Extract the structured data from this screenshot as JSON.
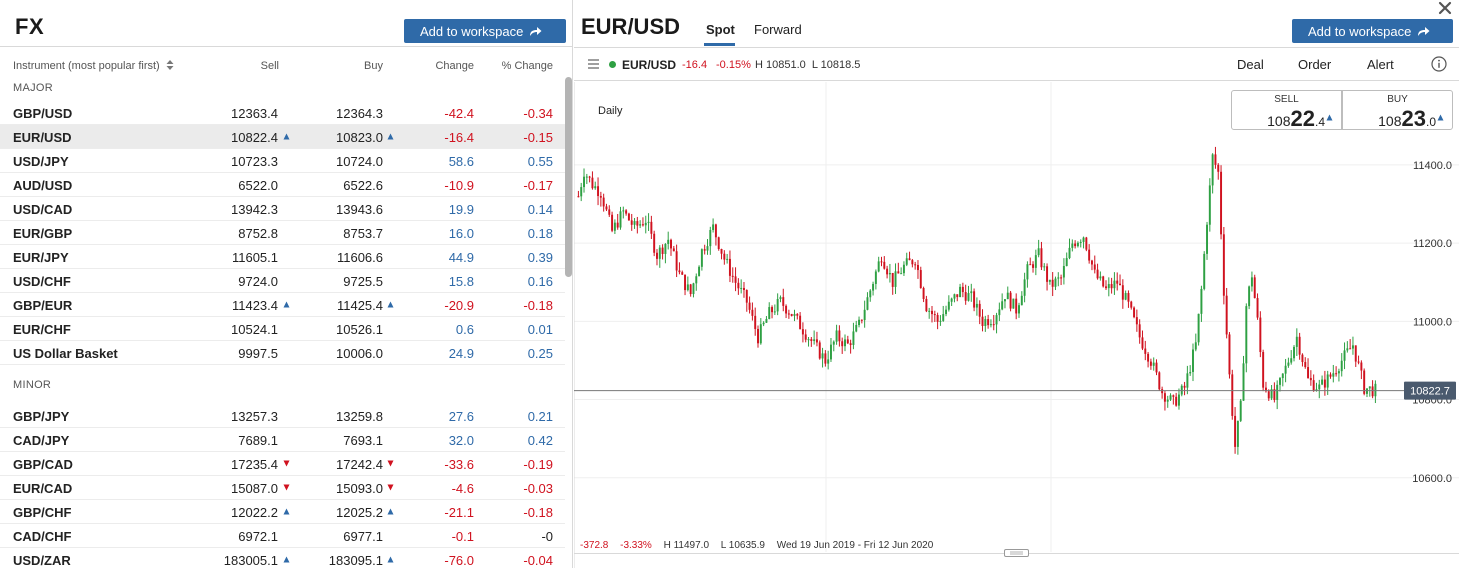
{
  "left_panel": {
    "title": "FX",
    "add_to_workspace": "Add to workspace",
    "columns": {
      "instrument": "Instrument (most popular first)",
      "sell": "Sell",
      "buy": "Buy",
      "change": "Change",
      "pct_change": "% Change"
    },
    "groups": [
      {
        "label": "MAJOR",
        "rows": [
          {
            "instrument": "GBP/USD",
            "sell": "12363.4",
            "buy": "12364.3",
            "change": "-42.4",
            "pct": "-0.34",
            "dir": "neg",
            "tick": ""
          },
          {
            "instrument": "EUR/USD",
            "sell": "10822.4",
            "buy": "10823.0",
            "change": "-16.4",
            "pct": "-0.15",
            "dir": "neg",
            "tick": "up",
            "selected": true
          },
          {
            "instrument": "USD/JPY",
            "sell": "10723.3",
            "buy": "10724.0",
            "change": "58.6",
            "pct": "0.55",
            "dir": "pos",
            "tick": ""
          },
          {
            "instrument": "AUD/USD",
            "sell": "6522.0",
            "buy": "6522.6",
            "change": "-10.9",
            "pct": "-0.17",
            "dir": "neg",
            "tick": ""
          },
          {
            "instrument": "USD/CAD",
            "sell": "13942.3",
            "buy": "13943.6",
            "change": "19.9",
            "pct": "0.14",
            "dir": "pos",
            "tick": ""
          },
          {
            "instrument": "EUR/GBP",
            "sell": "8752.8",
            "buy": "8753.7",
            "change": "16.0",
            "pct": "0.18",
            "dir": "pos",
            "tick": ""
          },
          {
            "instrument": "EUR/JPY",
            "sell": "11605.1",
            "buy": "11606.6",
            "change": "44.9",
            "pct": "0.39",
            "dir": "pos",
            "tick": ""
          },
          {
            "instrument": "USD/CHF",
            "sell": "9724.0",
            "buy": "9725.5",
            "change": "15.8",
            "pct": "0.16",
            "dir": "pos",
            "tick": ""
          },
          {
            "instrument": "GBP/EUR",
            "sell": "11423.4",
            "buy": "11425.4",
            "change": "-20.9",
            "pct": "-0.18",
            "dir": "neg",
            "tick": "up"
          },
          {
            "instrument": "EUR/CHF",
            "sell": "10524.1",
            "buy": "10526.1",
            "change": "0.6",
            "pct": "0.01",
            "dir": "pos",
            "tick": ""
          },
          {
            "instrument": "US Dollar Basket",
            "sell": "9997.5",
            "buy": "10006.0",
            "change": "24.9",
            "pct": "0.25",
            "dir": "pos",
            "tick": ""
          }
        ]
      },
      {
        "label": "MINOR",
        "rows": [
          {
            "instrument": "GBP/JPY",
            "sell": "13257.3",
            "buy": "13259.8",
            "change": "27.6",
            "pct": "0.21",
            "dir": "pos",
            "tick": ""
          },
          {
            "instrument": "CAD/JPY",
            "sell": "7689.1",
            "buy": "7693.1",
            "change": "32.0",
            "pct": "0.42",
            "dir": "pos",
            "tick": ""
          },
          {
            "instrument": "GBP/CAD",
            "sell": "17235.4",
            "buy": "17242.4",
            "change": "-33.6",
            "pct": "-0.19",
            "dir": "neg",
            "tick": "down"
          },
          {
            "instrument": "EUR/CAD",
            "sell": "15087.0",
            "buy": "15093.0",
            "change": "-4.6",
            "pct": "-0.03",
            "dir": "neg",
            "tick": "down"
          },
          {
            "instrument": "GBP/CHF",
            "sell": "12022.2",
            "buy": "12025.2",
            "change": "-21.1",
            "pct": "-0.18",
            "dir": "neg",
            "tick": "up"
          },
          {
            "instrument": "CAD/CHF",
            "sell": "6972.1",
            "buy": "6977.1",
            "change": "-0.1",
            "pct": "-0",
            "dir": "neg",
            "pct_dir": "neu",
            "tick": ""
          },
          {
            "instrument": "USD/ZAR",
            "sell": "183005.1",
            "buy": "183095.1",
            "change": "-76.0",
            "pct": "-0.04",
            "dir": "neg",
            "tick": "up"
          }
        ]
      }
    ]
  },
  "right_panel": {
    "title": "EUR/USD",
    "tabs": [
      {
        "label": "Spot",
        "active": true
      },
      {
        "label": "Forward",
        "active": false
      }
    ],
    "add_to_workspace": "Add to workspace",
    "toolbar": {
      "instrument": "EUR/USD",
      "change": "-16.4",
      "pct_change": "-0.15%",
      "high_low": "H 10851.0  L 10818.5",
      "deal": "Deal",
      "order": "Order",
      "alert": "Alert"
    },
    "quote": {
      "sell_label": "SELL",
      "sell_pre": "108",
      "sell_big": "22",
      "sell_small": ".4",
      "buy_label": "BUY",
      "buy_pre": "108",
      "buy_big": "23",
      "buy_small": ".0"
    },
    "stats": {
      "change": "-372.8",
      "pct": "-3.33%",
      "high": "H 11497.0",
      "low": "L 10635.9",
      "range": "Wed 19 Jun 2019 - Fri 12 Jun 2020"
    },
    "colors": {
      "up": "#2ea043",
      "down": "#d0121f",
      "accent": "#2f6aa8"
    }
  },
  "chart_data": {
    "type": "candlestick",
    "period": "Daily",
    "y_ticks": [
      "11400.0",
      "11200.0",
      "11000.0",
      "10800.0",
      "10600.0"
    ],
    "y_tick_values": [
      11400,
      11200,
      11000,
      10800,
      10600
    ],
    "ylim": [
      10446,
      11612
    ],
    "current_price": "10822.7",
    "current_value": 10822.7,
    "high": 11497.0,
    "low": 10635.9,
    "x_range": [
      "19 Jun 2019",
      "12 Jun 2020"
    ],
    "close_path": [
      [
        0,
        11320
      ],
      [
        2,
        11385
      ],
      [
        5,
        11350
      ],
      [
        8,
        11330
      ],
      [
        12,
        11230
      ],
      [
        16,
        11280
      ],
      [
        20,
        11240
      ],
      [
        24,
        11260
      ],
      [
        28,
        11170
      ],
      [
        32,
        11210
      ],
      [
        36,
        11120
      ],
      [
        40,
        11070
      ],
      [
        44,
        11180
      ],
      [
        48,
        11240
      ],
      [
        52,
        11160
      ],
      [
        56,
        11100
      ],
      [
        60,
        11050
      ],
      [
        64,
        10960
      ],
      [
        68,
        11020
      ],
      [
        72,
        11050
      ],
      [
        76,
        11020
      ],
      [
        80,
        10980
      ],
      [
        84,
        10940
      ],
      [
        88,
        10900
      ],
      [
        92,
        10960
      ],
      [
        96,
        10940
      ],
      [
        100,
        10990
      ],
      [
        104,
        11080
      ],
      [
        108,
        11170
      ],
      [
        112,
        11100
      ],
      [
        116,
        11140
      ],
      [
        120,
        11160
      ],
      [
        124,
        11040
      ],
      [
        128,
        11000
      ],
      [
        132,
        11040
      ],
      [
        136,
        11080
      ],
      [
        140,
        11060
      ],
      [
        144,
        11000
      ],
      [
        148,
        11010
      ],
      [
        152,
        11070
      ],
      [
        156,
        11030
      ],
      [
        160,
        11130
      ],
      [
        164,
        11170
      ],
      [
        168,
        11090
      ],
      [
        172,
        11110
      ],
      [
        176,
        11200
      ],
      [
        180,
        11220
      ],
      [
        184,
        11120
      ],
      [
        188,
        11080
      ],
      [
        192,
        11100
      ],
      [
        196,
        11040
      ],
      [
        200,
        10960
      ],
      [
        204,
        10900
      ],
      [
        208,
        10820
      ],
      [
        212,
        10790
      ],
      [
        216,
        10830
      ],
      [
        220,
        10940
      ],
      [
        222,
        11080
      ],
      [
        224,
        11260
      ],
      [
        226,
        11420
      ],
      [
        228,
        11380
      ],
      [
        230,
        11080
      ],
      [
        232,
        10860
      ],
      [
        234,
        10680
      ],
      [
        236,
        10780
      ],
      [
        238,
        11040
      ],
      [
        240,
        11120
      ],
      [
        242,
        11000
      ],
      [
        244,
        10840
      ],
      [
        248,
        10800
      ],
      [
        252,
        10880
      ],
      [
        256,
        10960
      ],
      [
        260,
        10850
      ],
      [
        264,
        10830
      ],
      [
        268,
        10860
      ],
      [
        272,
        10900
      ],
      [
        276,
        10940
      ],
      [
        280,
        10830
      ],
      [
        284,
        10823
      ]
    ]
  }
}
